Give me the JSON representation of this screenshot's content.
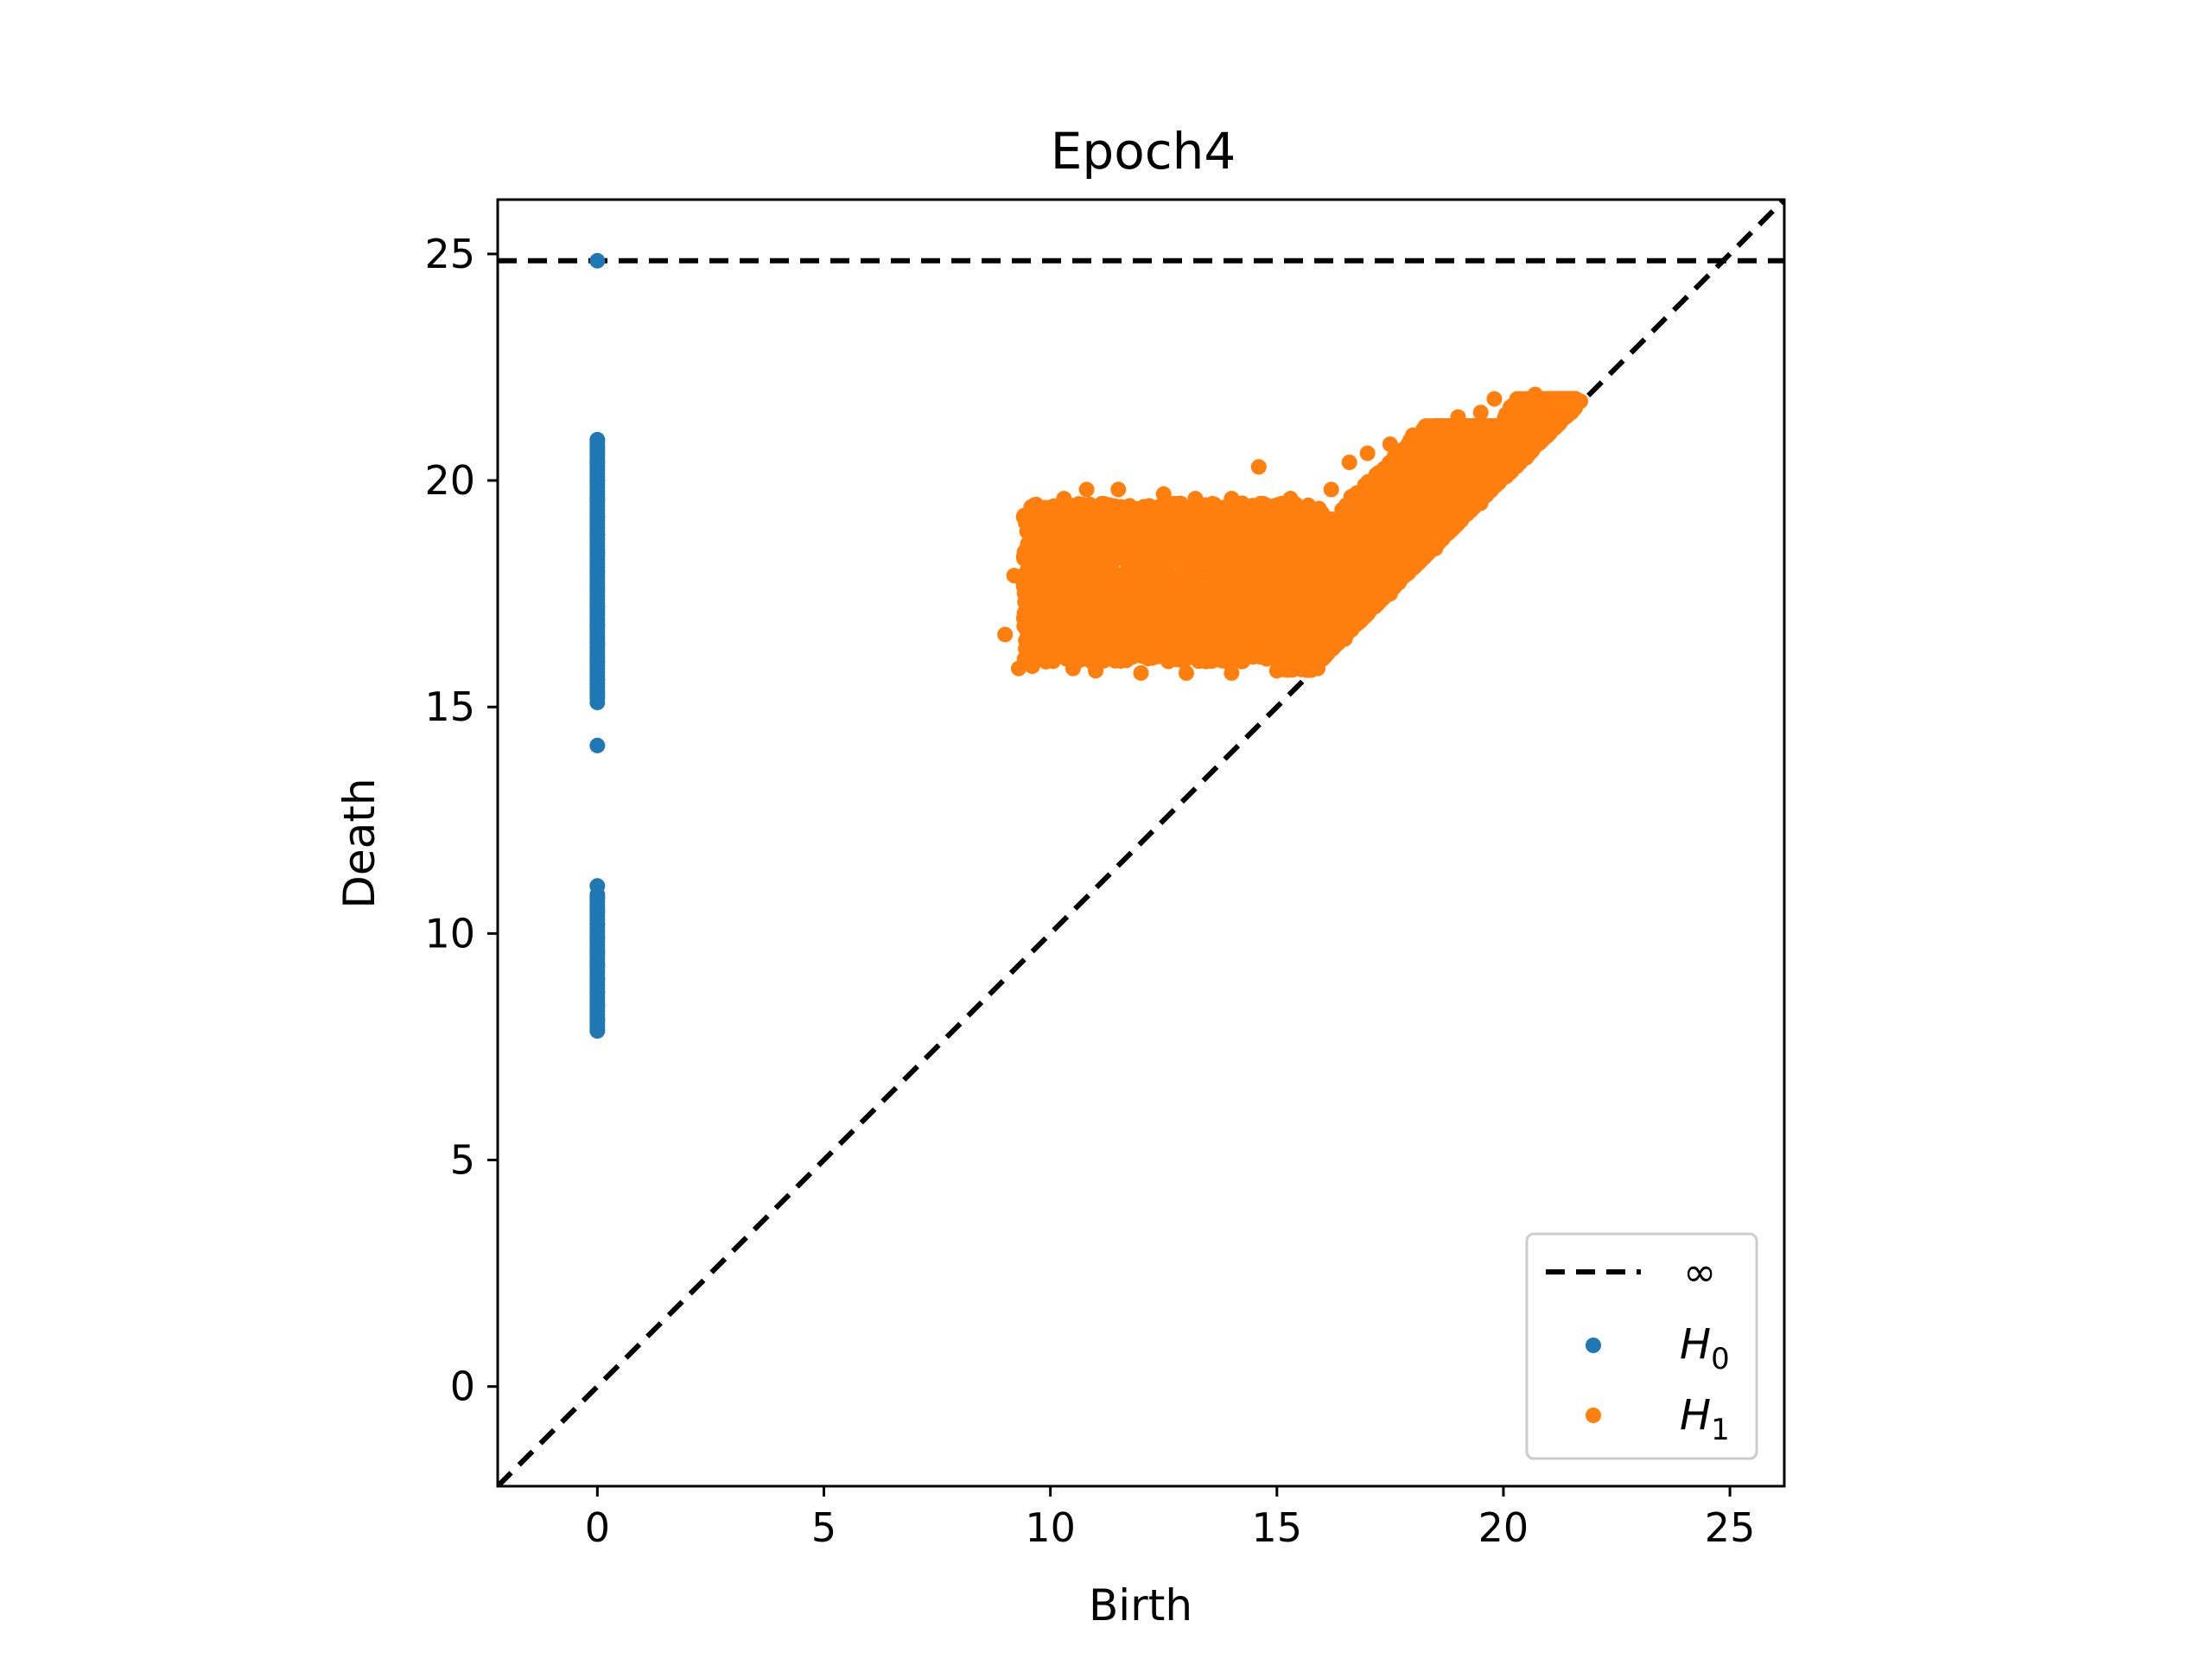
{
  "chart_data": {
    "type": "scatter",
    "title": "Epoch4",
    "xlabel": "Birth",
    "ylabel": "Death",
    "xlim": [
      -2.2,
      26.2
    ],
    "ylim": [
      -2.2,
      26.2
    ],
    "xticks": [
      0,
      5,
      10,
      15,
      20,
      25
    ],
    "yticks": [
      0,
      5,
      10,
      15,
      20,
      25
    ],
    "grid": false,
    "legend_position": "lower-right",
    "infinity_line": {
      "label": "∞",
      "value": 24.85,
      "style": "dashed",
      "color": "#000000"
    },
    "diagonal": {
      "style": "dashed",
      "color": "#000000"
    },
    "series": [
      {
        "name": "H0",
        "label_main": "H",
        "label_sub": "0",
        "color": "#1f77b4",
        "points": [
          [
            0,
            24.85
          ],
          [
            0,
            14.15
          ],
          [
            0,
            15.1
          ],
          [
            0,
            15.3
          ],
          [
            0,
            15.6
          ],
          [
            0,
            16.0
          ],
          [
            0,
            16.4
          ],
          [
            0,
            16.8
          ],
          [
            0,
            17.2
          ],
          [
            0,
            17.6
          ],
          [
            0,
            18.0
          ],
          [
            0,
            18.4
          ],
          [
            0,
            18.8
          ],
          [
            0,
            19.2
          ],
          [
            0,
            19.6
          ],
          [
            0,
            20.0
          ],
          [
            0,
            20.4
          ],
          [
            0,
            20.7
          ],
          [
            0,
            20.9
          ],
          [
            0,
            7.85
          ],
          [
            0,
            8.1
          ],
          [
            0,
            8.4
          ],
          [
            0,
            8.7
          ],
          [
            0,
            9.0
          ],
          [
            0,
            9.3
          ],
          [
            0,
            9.6
          ],
          [
            0,
            9.9
          ],
          [
            0,
            10.2
          ],
          [
            0,
            10.5
          ],
          [
            0,
            10.8
          ],
          [
            0,
            11.05
          ]
        ],
        "dense_ranges": [
          [
            0,
            15.2,
            20.95
          ],
          [
            0,
            7.9,
            10.9
          ]
        ]
      },
      {
        "name": "H1",
        "label_main": "H",
        "label_sub": "1",
        "color": "#ff7f0e",
        "points": [
          [
            9.0,
            16.6
          ],
          [
            9.2,
            17.9
          ],
          [
            9.3,
            15.85
          ],
          [
            9.6,
            15.9
          ],
          [
            9.9,
            16.0
          ],
          [
            9.5,
            18.6
          ],
          [
            9.8,
            19.2
          ],
          [
            10.3,
            19.6
          ],
          [
            10.8,
            19.8
          ],
          [
            11.5,
            19.8
          ],
          [
            12.5,
            19.7
          ],
          [
            13.2,
            19.6
          ],
          [
            14.0,
            19.6
          ],
          [
            14.6,
            20.3
          ],
          [
            15.3,
            19.6
          ],
          [
            16.2,
            19.8
          ],
          [
            16.6,
            20.4
          ],
          [
            17.0,
            20.6
          ],
          [
            17.5,
            20.8
          ],
          [
            18.0,
            21.0
          ],
          [
            18.5,
            21.2
          ],
          [
            19.0,
            21.4
          ],
          [
            19.5,
            21.5
          ],
          [
            19.8,
            21.8
          ],
          [
            20.3,
            21.8
          ],
          [
            20.7,
            21.9
          ],
          [
            21.2,
            21.8
          ],
          [
            21.5,
            21.6
          ],
          [
            21.7,
            21.75
          ],
          [
            10.5,
            15.85
          ],
          [
            11.0,
            15.8
          ],
          [
            12.0,
            15.75
          ],
          [
            13.0,
            15.75
          ],
          [
            14.0,
            15.75
          ],
          [
            15.0,
            15.8
          ],
          [
            15.9,
            15.85
          ],
          [
            16.5,
            16.5
          ],
          [
            17.5,
            17.5
          ],
          [
            18.5,
            18.5
          ],
          [
            19.5,
            19.5
          ],
          [
            20.5,
            20.5
          ],
          [
            21.5,
            21.5
          ]
        ],
        "density": [
          {
            "birth": [
              9.4,
              16.0
            ],
            "death": [
              16.0,
              19.5
            ]
          },
          {
            "birth": [
              15.0,
              20.5
            ],
            "death_above_diagonal": [
              0.05,
              3.0
            ],
            "death_max": 21.2
          },
          {
            "birth": [
              20.0,
              21.6
            ],
            "death_above_diagonal": [
              0.02,
              1.5
            ],
            "death_max": 21.8
          }
        ]
      }
    ]
  }
}
